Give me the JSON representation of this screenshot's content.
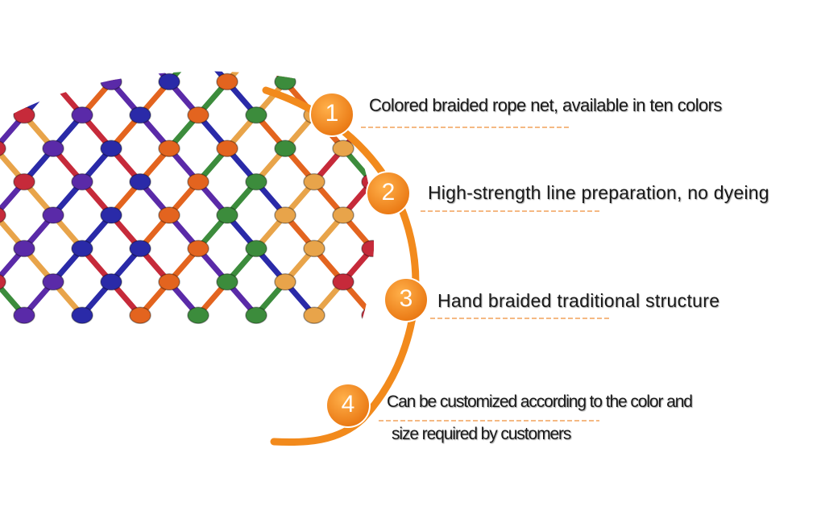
{
  "accent_color": "#f28a1c",
  "net_colors": [
    "#c62a3a",
    "#5a2aa8",
    "#2a2aa8",
    "#e3641f",
    "#3c8c3c",
    "#e8a44a"
  ],
  "illustration": "braided-rope-net-icon",
  "features": [
    {
      "number": "1",
      "text": "Colored braided rope net, available in ten colors"
    },
    {
      "number": "2",
      "text": "High-strength line preparation, no dyeing"
    },
    {
      "number": "3",
      "text": "Hand braided traditional structure"
    },
    {
      "number": "4",
      "text": "Can be customized according to the color and",
      "text_line2": "size required by customers"
    }
  ]
}
